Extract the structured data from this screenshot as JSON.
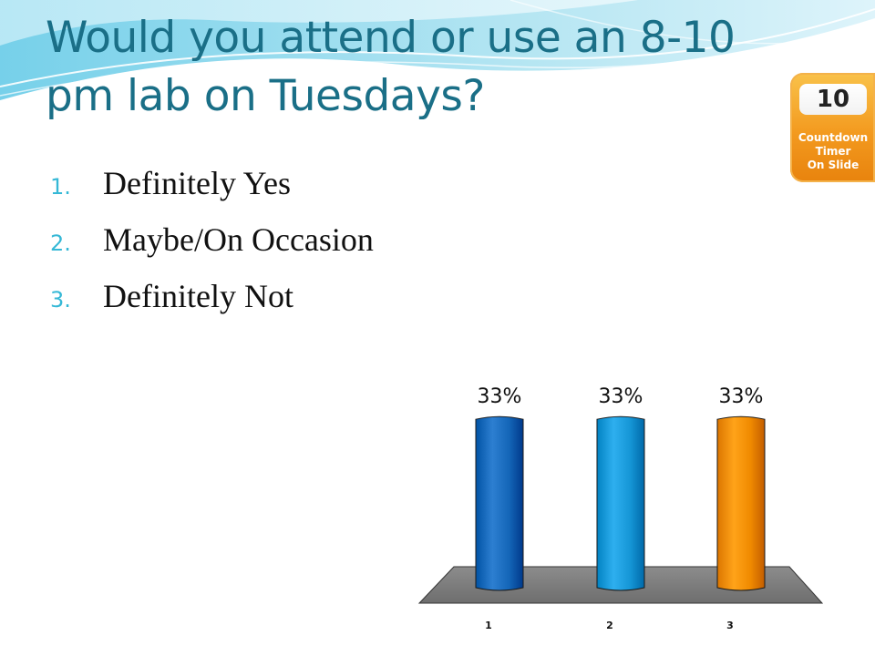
{
  "slide": {
    "title": "Would you attend or use an 8-10 pm lab on Tuesdays?",
    "options": [
      {
        "num": "1.",
        "label": "Definitely Yes"
      },
      {
        "num": "2.",
        "label": "Maybe/On Occasion"
      },
      {
        "num": "3.",
        "label": "Definitely Not"
      }
    ]
  },
  "timer": {
    "count": "10",
    "label": "Countdown\nTimer\nOn Slide"
  },
  "chart_data": {
    "type": "bar",
    "categories": [
      "1",
      "2",
      "3"
    ],
    "values": [
      33,
      33,
      33
    ],
    "data_labels": [
      "33%",
      "33%",
      "33%"
    ],
    "ylim": [
      0,
      100
    ],
    "colors": [
      "#1466b8",
      "#1596d6",
      "#f08a00"
    ],
    "grid": false,
    "title": "",
    "xlabel": "",
    "ylabel": ""
  }
}
